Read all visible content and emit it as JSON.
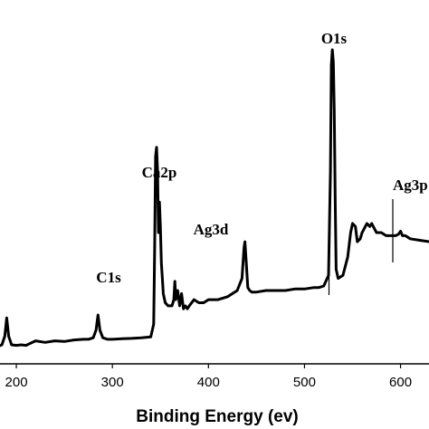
{
  "chart_data": {
    "type": "line",
    "title": "",
    "xlabel": "Binding Energy (ev)",
    "ylabel": "",
    "xlim": [
      150,
      640
    ],
    "ylim": [
      0,
      100
    ],
    "x_ticks": [
      "200",
      "300",
      "400",
      "500",
      "600"
    ],
    "grid": false,
    "legend": "none",
    "line_color": "#000000",
    "annotations": [
      {
        "text": "C1s",
        "x": 285
      },
      {
        "text": "Ca2p",
        "x": 347
      },
      {
        "text": "Ag3d",
        "x": 368
      },
      {
        "text": "O1s",
        "x": 531
      },
      {
        "text": "Ag3p",
        "x": 600
      }
    ],
    "series": [
      {
        "x": [
          150,
          160,
          170,
          180,
          185,
          188,
          190,
          192,
          195,
          200,
          205,
          210,
          220,
          230,
          240,
          250,
          260,
          270,
          275,
          280,
          283,
          285,
          287,
          290,
          295,
          300,
          310,
          320,
          330,
          340,
          343,
          344,
          345,
          346,
          347,
          348,
          349,
          350,
          351,
          352,
          353,
          355,
          358,
          360,
          362,
          364,
          365,
          366,
          368,
          370,
          372,
          374,
          376,
          378,
          380,
          385,
          390,
          395,
          400,
          410,
          420,
          430,
          435,
          437,
          438,
          439,
          441,
          443,
          445,
          450,
          460,
          470,
          480,
          490,
          500,
          510,
          515,
          520,
          525,
          527,
          528,
          529,
          530,
          531,
          532,
          533,
          535,
          540,
          545,
          548,
          550,
          553,
          555,
          558,
          560,
          565,
          568,
          570,
          575,
          580,
          585,
          590,
          595,
          598,
          600,
          602,
          605,
          610,
          620,
          630,
          640
        ],
        "y": [
          2.0,
          2.2,
          3.0,
          2.5,
          3.2,
          6.0,
          12.0,
          6.0,
          3.2,
          3.0,
          3.2,
          3.0,
          4.5,
          4.0,
          4.5,
          4.3,
          4.8,
          5.0,
          5.0,
          5.5,
          8.0,
          13.0,
          8.0,
          5.5,
          5.0,
          5.0,
          5.2,
          5.3,
          5.5,
          5.8,
          10.0,
          35.0,
          65.0,
          68.0,
          60.0,
          40.0,
          50.0,
          42.0,
          30.0,
          25.0,
          20.0,
          17.0,
          16.0,
          16.0,
          16.0,
          18.0,
          24.0,
          18.0,
          21.0,
          16.0,
          20.0,
          15.0,
          16.0,
          15.0,
          16.0,
          18.0,
          17.0,
          17.0,
          18.0,
          18.0,
          19.0,
          21.0,
          25.0,
          35.0,
          37.0,
          32.0,
          22.0,
          21.0,
          20.5,
          20.5,
          21.0,
          21.0,
          21.0,
          21.5,
          21.5,
          22.0,
          22.0,
          22.5,
          26.0,
          60.0,
          95.0,
          100.0,
          96.0,
          80.0,
          50.0,
          28.0,
          25.0,
          26.0,
          32.0,
          40.0,
          43.0,
          42.0,
          37.0,
          38.0,
          40.0,
          43.0,
          42.0,
          43.0,
          40.0,
          40.0,
          39.0,
          39.0,
          39.0,
          39.5,
          40.5,
          39.0,
          39.0,
          38.0,
          37.5,
          37.0,
          37.0
        ]
      }
    ]
  }
}
